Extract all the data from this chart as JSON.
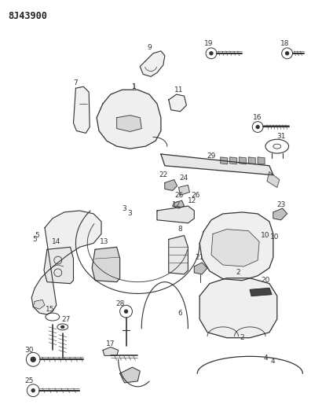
{
  "title": "8J43900",
  "bg_color": "#ffffff",
  "line_color": "#333333",
  "label_fontsize": 6.5,
  "figsize": [
    3.96,
    5.33
  ],
  "dpi": 100
}
